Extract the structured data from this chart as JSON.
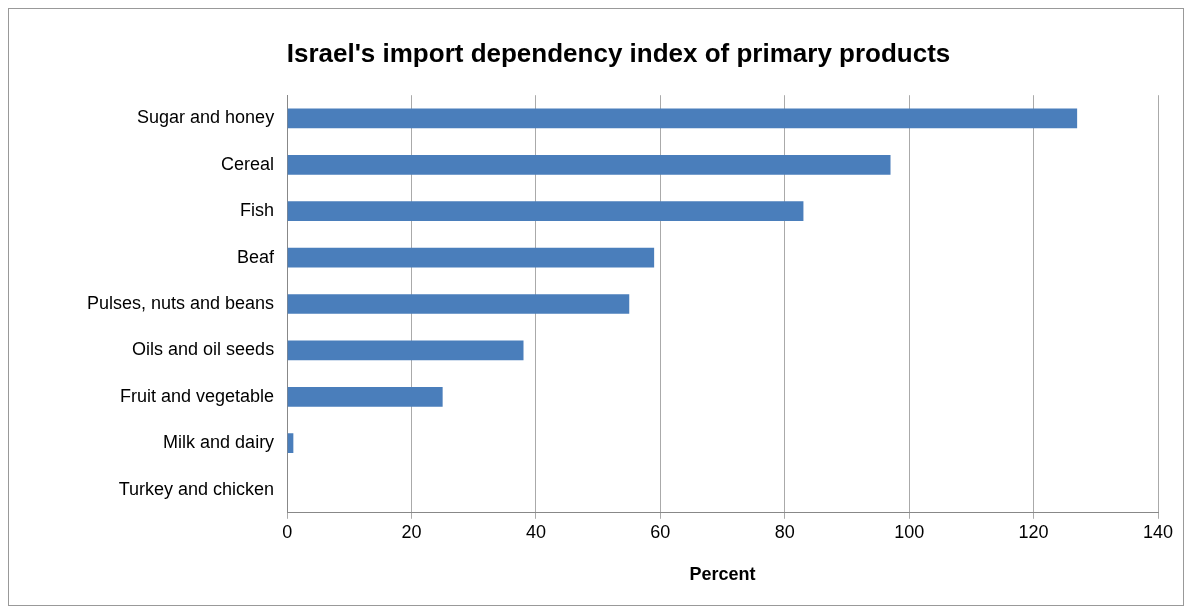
{
  "chart_data": {
    "type": "bar",
    "orientation": "horizontal",
    "title": "Israel's import dependency index of primary products",
    "xlabel": "Percent",
    "categories": [
      "Sugar and honey",
      "Cereal",
      "Fish",
      "Beaf",
      "Pulses, nuts and beans",
      "Oils and oil seeds",
      "Fruit and vegetable",
      "Milk and dairy",
      "Turkey and chicken"
    ],
    "values": [
      127,
      97,
      83,
      59,
      55,
      38,
      25,
      1,
      0
    ],
    "color": "#4a7ebb",
    "xlim": [
      0,
      140
    ],
    "xticks": [
      0,
      20,
      40,
      60,
      80,
      100,
      120,
      140
    ],
    "grid": "x",
    "legend": false
  }
}
